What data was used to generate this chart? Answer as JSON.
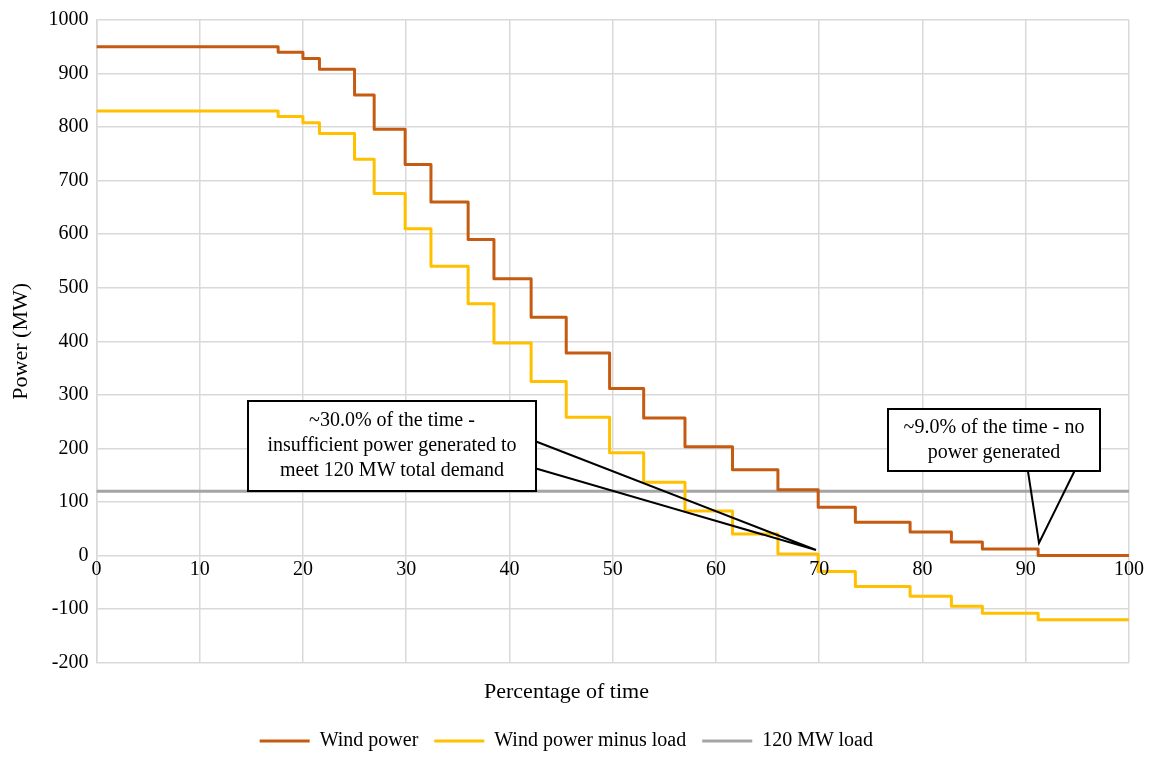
{
  "chart_data": {
    "type": "step",
    "xlabel": "Percentage of time",
    "ylabel": "Power (MW)",
    "xlim": [
      0,
      100
    ],
    "xticks": [
      0,
      10,
      20,
      30,
      40,
      50,
      60,
      70,
      80,
      90,
      100
    ],
    "ylim": [
      -200,
      1000
    ],
    "yticks": [
      -200,
      -100,
      0,
      100,
      200,
      300,
      400,
      500,
      600,
      700,
      800,
      900,
      1000
    ],
    "grid": true,
    "legend": "bottom",
    "line_style": "solid",
    "marker": "none",
    "series": [
      {
        "name": "Wind power",
        "color": "#c55a11",
        "x": [
          0,
          17.6,
          20.0,
          21.6,
          25.0,
          26.9,
          29.9,
          32.4,
          36.0,
          38.5,
          42.1,
          45.5,
          49.7,
          53.0,
          57.0,
          61.6,
          66.0,
          69.9,
          73.5,
          78.8,
          82.8,
          85.8,
          91.2,
          100
        ],
        "values": [
          950,
          940,
          928,
          908,
          860,
          796,
          730,
          660,
          590,
          517,
          445,
          378,
          312,
          257,
          203,
          160,
          123,
          90,
          62,
          44,
          25,
          12,
          0,
          0
        ]
      },
      {
        "name": "Wind power minus load",
        "color": "#ffc000",
        "x": [
          0,
          17.6,
          20.0,
          21.6,
          25.0,
          26.9,
          29.9,
          32.4,
          36.0,
          38.5,
          42.1,
          45.5,
          49.7,
          53.0,
          57.0,
          61.6,
          66.0,
          69.9,
          73.5,
          78.8,
          82.8,
          85.8,
          91.2,
          100
        ],
        "values": [
          830,
          820,
          808,
          788,
          740,
          676,
          610,
          540,
          470,
          397,
          325,
          258,
          192,
          137,
          83,
          40,
          3,
          -30,
          -58,
          -76,
          -95,
          -108,
          -120,
          -120
        ]
      },
      {
        "name": "120 MW load",
        "color": "#a5a5a5",
        "x": [
          0,
          100
        ],
        "values": [
          120,
          120
        ]
      }
    ],
    "annotations": [
      "~30.0% of the time -\ninsufficient power generated to\nmeet 120 MW total demand",
      "~9.0% of the time - no\npower generated"
    ]
  }
}
